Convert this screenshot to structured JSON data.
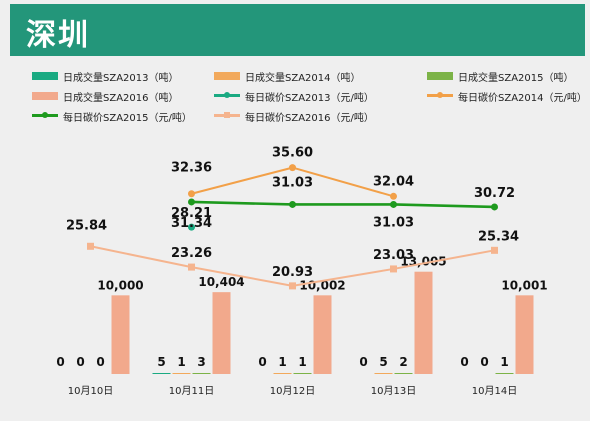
{
  "title": "深圳",
  "legend": [
    {
      "label": "日成交量SZA2013（吨）",
      "kind": "bar",
      "color": "#1aaa82"
    },
    {
      "label": "日成交量SZA2014（吨）",
      "kind": "bar",
      "color": "#f2a95c"
    },
    {
      "label": "日成交量SZA2015（吨）",
      "kind": "bar",
      "color": "#7cb347"
    },
    {
      "label": "日成交量SZA2016（吨）",
      "kind": "bar",
      "color": "#f2a98c"
    },
    {
      "label": "每日碳价SZA2013（元/吨）",
      "kind": "line",
      "color": "#1aaa82",
      "marker": "circle"
    },
    {
      "label": "每日碳价SZA2014（元/吨）",
      "kind": "line",
      "color": "#f2a048",
      "marker": "circle"
    },
    {
      "label": "每日碳价SZA2015（元/吨）",
      "kind": "line",
      "color": "#1e9a1e",
      "marker": "circle"
    },
    {
      "label": "每日碳价SZA2016（元/吨）",
      "kind": "line",
      "color": "#f5b48e",
      "marker": "square"
    }
  ],
  "chart_data": {
    "type": "bar+line",
    "categories": [
      "10月10日",
      "10月11日",
      "10月12日",
      "10月13日",
      "10月14日"
    ],
    "bar_series": [
      {
        "name": "日成交量SZA2013（吨）",
        "color": "#1aaa82",
        "values": [
          0,
          5,
          0,
          0,
          0
        ],
        "labels": [
          "0",
          "5",
          "0",
          "0",
          "0"
        ]
      },
      {
        "name": "日成交量SZA2014（吨）",
        "color": "#f2a95c",
        "values": [
          0,
          1,
          1,
          5,
          0
        ],
        "labels": [
          "0",
          "1",
          "1",
          "5",
          "0"
        ]
      },
      {
        "name": "日成交量SZA2015（吨）",
        "color": "#7cb347",
        "values": [
          0,
          3,
          1,
          2,
          1
        ],
        "labels": [
          "0",
          "3",
          "1",
          "2",
          "1"
        ]
      },
      {
        "name": "日成交量SZA2016（吨）",
        "color": "#f2a98c",
        "values": [
          10000,
          10404,
          10002,
          13005,
          10001
        ],
        "labels": [
          "10,000",
          "10,404",
          "10,002",
          "13,005",
          "10,001"
        ]
      }
    ],
    "line_series": [
      {
        "name": "每日碳价SZA2013（元/吨）",
        "color": "#1aaa82",
        "marker": "circle",
        "values": [
          null,
          28.21,
          null,
          null,
          null
        ]
      },
      {
        "name": "每日碳价SZA2014（元/吨）",
        "color": "#f2a048",
        "marker": "circle",
        "values": [
          null,
          32.36,
          35.6,
          32.04,
          null
        ]
      },
      {
        "name": "每日碳价SZA2015（元/吨）",
        "color": "#1e9a1e",
        "marker": "circle",
        "values": [
          null,
          31.34,
          31.03,
          31.03,
          30.72
        ]
      },
      {
        "name": "每日碳价SZA2016（元/吨）",
        "color": "#f5b48e",
        "marker": "square",
        "values": [
          25.84,
          23.26,
          20.93,
          23.03,
          25.34
        ]
      }
    ],
    "bar_axis_max": 30000,
    "price_axis_range": [
      10,
      42
    ],
    "axes_visible": false,
    "grid": false,
    "legend_position": "top"
  }
}
